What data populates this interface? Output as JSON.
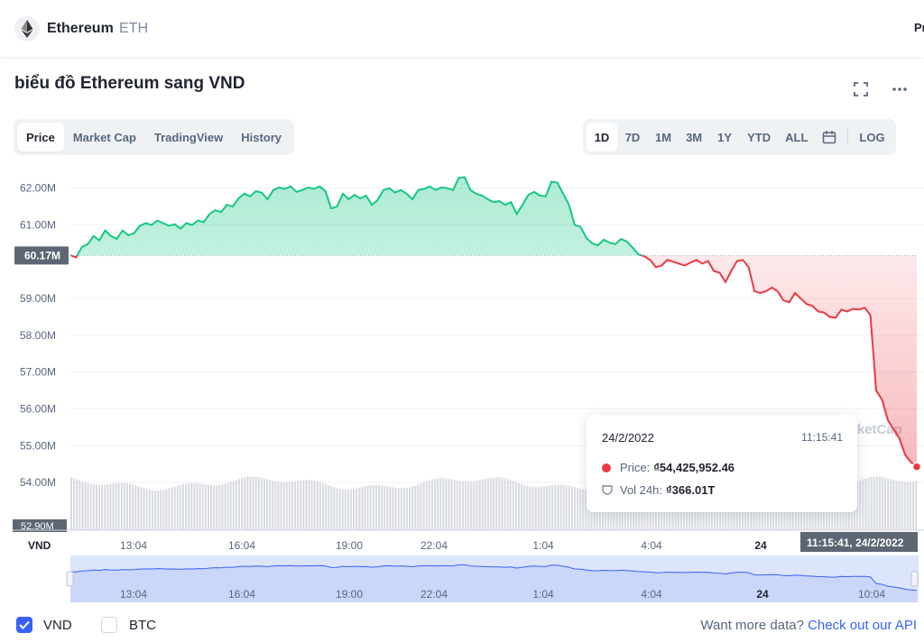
{
  "header": {
    "coin_name": "Ethereum",
    "coin_symbol": "ETH",
    "right_truncated": "Pr"
  },
  "page": {
    "title": "biểu đồ Ethereum sang VND"
  },
  "tabs": [
    {
      "label": "Price",
      "active": true
    },
    {
      "label": "Market Cap",
      "active": false
    },
    {
      "label": "TradingView",
      "active": false
    },
    {
      "label": "History",
      "active": false
    }
  ],
  "ranges": [
    {
      "label": "1D",
      "active": true
    },
    {
      "label": "7D",
      "active": false
    },
    {
      "label": "1M",
      "active": false
    },
    {
      "label": "3M",
      "active": false
    },
    {
      "label": "1Y",
      "active": false
    },
    {
      "label": "YTD",
      "active": false
    },
    {
      "label": "ALL",
      "active": false
    }
  ],
  "log_label": "LOG",
  "colors": {
    "up": "#16c784",
    "down": "#ea3943",
    "accent": "#3861fb"
  },
  "chart_data": {
    "type": "line",
    "currency_label": "VND",
    "y_tick_labels": [
      "62.00M",
      "61.00M",
      "59.00M",
      "58.00M",
      "57.00M",
      "56.00M",
      "55.00M",
      "54.00M",
      "52.90M"
    ],
    "y_ticks": [
      62,
      61,
      59,
      58,
      57,
      56,
      55,
      54,
      52.9
    ],
    "ylim": [
      52.9,
      63.6
    ],
    "reference_value": 60.17,
    "reference_label": "60.17M",
    "x_tick_labels": [
      "13:04",
      "16:04",
      "19:00",
      "22:04",
      "1:04",
      "4:04",
      "24"
    ],
    "x_tick_bold": [
      false,
      false,
      false,
      false,
      false,
      false,
      true
    ],
    "watermark": "rketCap",
    "current_label": "11:15:41, 24/2/2022",
    "points": [
      [
        0,
        60.18
      ],
      [
        1,
        60.12
      ],
      [
        2,
        60.4
      ],
      [
        3,
        60.48
      ],
      [
        4,
        60.7
      ],
      [
        5,
        60.58
      ],
      [
        6,
        60.85
      ],
      [
        7,
        60.7
      ],
      [
        8,
        60.62
      ],
      [
        9,
        60.85
      ],
      [
        10,
        60.72
      ],
      [
        11,
        60.78
      ],
      [
        12,
        60.98
      ],
      [
        13,
        61.05
      ],
      [
        14,
        61.0
      ],
      [
        15,
        61.12
      ],
      [
        16,
        61.05
      ],
      [
        17,
        60.98
      ],
      [
        18,
        61.02
      ],
      [
        19,
        60.9
      ],
      [
        20,
        61.05
      ],
      [
        21,
        61.0
      ],
      [
        22,
        61.12
      ],
      [
        23,
        61.08
      ],
      [
        24,
        61.3
      ],
      [
        25,
        61.4
      ],
      [
        26,
        61.35
      ],
      [
        27,
        61.55
      ],
      [
        28,
        61.5
      ],
      [
        29,
        61.72
      ],
      [
        30,
        61.85
      ],
      [
        31,
        61.78
      ],
      [
        32,
        61.92
      ],
      [
        33,
        61.88
      ],
      [
        34,
        61.7
      ],
      [
        35,
        61.95
      ],
      [
        36,
        62.02
      ],
      [
        37,
        61.98
      ],
      [
        38,
        62.05
      ],
      [
        39,
        61.9
      ],
      [
        40,
        61.95
      ],
      [
        41,
        62.02
      ],
      [
        42,
        61.98
      ],
      [
        43,
        62.05
      ],
      [
        44,
        61.92
      ],
      [
        45,
        61.45
      ],
      [
        46,
        61.5
      ],
      [
        47,
        61.85
      ],
      [
        48,
        61.7
      ],
      [
        49,
        61.82
      ],
      [
        50,
        61.72
      ],
      [
        51,
        61.8
      ],
      [
        52,
        61.55
      ],
      [
        53,
        61.68
      ],
      [
        54,
        61.95
      ],
      [
        55,
        62.0
      ],
      [
        56,
        61.88
      ],
      [
        57,
        61.95
      ],
      [
        58,
        61.85
      ],
      [
        59,
        61.7
      ],
      [
        60,
        61.95
      ],
      [
        61,
        61.98
      ],
      [
        62,
        62.05
      ],
      [
        63,
        61.95
      ],
      [
        64,
        62.02
      ],
      [
        65,
        62.0
      ],
      [
        66,
        61.95
      ],
      [
        67,
        62.28
      ],
      [
        68,
        62.3
      ],
      [
        69,
        61.95
      ],
      [
        70,
        61.85
      ],
      [
        71,
        61.8
      ],
      [
        72,
        61.7
      ],
      [
        73,
        61.62
      ],
      [
        74,
        61.65
      ],
      [
        75,
        61.55
      ],
      [
        76,
        61.62
      ],
      [
        77,
        61.3
      ],
      [
        78,
        61.55
      ],
      [
        79,
        61.82
      ],
      [
        80,
        61.9
      ],
      [
        81,
        61.8
      ],
      [
        82,
        61.78
      ],
      [
        83,
        62.18
      ],
      [
        84,
        62.15
      ],
      [
        85,
        61.85
      ],
      [
        86,
        61.55
      ],
      [
        87,
        61.0
      ],
      [
        88,
        60.95
      ],
      [
        89,
        60.65
      ],
      [
        90,
        60.5
      ],
      [
        91,
        60.45
      ],
      [
        92,
        60.6
      ],
      [
        93,
        60.52
      ],
      [
        94,
        60.48
      ],
      [
        95,
        60.62
      ],
      [
        96,
        60.55
      ],
      [
        97,
        60.38
      ],
      [
        98,
        60.2
      ],
      [
        99,
        60.15
      ],
      [
        100,
        60.05
      ],
      [
        101,
        59.85
      ],
      [
        102,
        59.9
      ],
      [
        103,
        60.05
      ],
      [
        104,
        60.0
      ],
      [
        105,
        59.95
      ],
      [
        106,
        59.9
      ],
      [
        107,
        59.98
      ],
      [
        108,
        60.05
      ],
      [
        109,
        59.95
      ],
      [
        110,
        60.02
      ],
      [
        111,
        59.75
      ],
      [
        112,
        59.7
      ],
      [
        113,
        59.45
      ],
      [
        114,
        59.75
      ],
      [
        115,
        60.02
      ],
      [
        116,
        60.05
      ],
      [
        117,
        59.85
      ],
      [
        118,
        59.2
      ],
      [
        119,
        59.15
      ],
      [
        120,
        59.2
      ],
      [
        121,
        59.3
      ],
      [
        122,
        59.2
      ],
      [
        123,
        58.95
      ],
      [
        124,
        58.9
      ],
      [
        125,
        59.15
      ],
      [
        126,
        59.0
      ],
      [
        127,
        58.85
      ],
      [
        128,
        58.8
      ],
      [
        129,
        58.65
      ],
      [
        130,
        58.62
      ],
      [
        131,
        58.5
      ],
      [
        132,
        58.48
      ],
      [
        133,
        58.7
      ],
      [
        134,
        58.65
      ],
      [
        135,
        58.72
      ],
      [
        136,
        58.7
      ],
      [
        137,
        58.75
      ],
      [
        138,
        58.55
      ],
      [
        139,
        56.5
      ],
      [
        140,
        56.25
      ],
      [
        141,
        55.7
      ],
      [
        142,
        55.45
      ],
      [
        143,
        55.2
      ],
      [
        144,
        54.75
      ],
      [
        145,
        54.55
      ],
      [
        146,
        54.43
      ]
    ],
    "tooltip": {
      "date": "24/2/2022",
      "time": "11:15:41",
      "price_label": "Price:",
      "price_value": "₫54,425,952.46",
      "vol_label": "Vol 24h:",
      "vol_value": "₫366.01T"
    },
    "navigator": {
      "x_tick_labels": [
        "13:04",
        "16:04",
        "19:00",
        "22:04",
        "1:04",
        "4:04",
        "24",
        "10:04"
      ],
      "x_tick_bold": [
        false,
        false,
        false,
        false,
        false,
        false,
        true,
        false
      ]
    }
  },
  "footer": {
    "vnd_label": "VND",
    "vnd_checked": true,
    "btc_label": "BTC",
    "btc_checked": false,
    "api_prefix": "Want more data?",
    "api_link": "Check out our API"
  }
}
